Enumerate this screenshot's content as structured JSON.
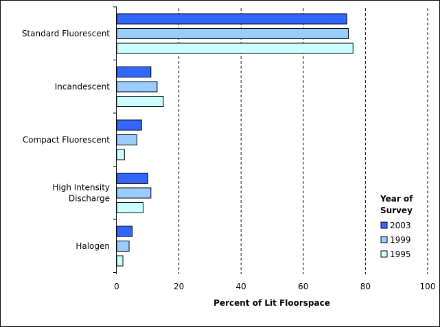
{
  "chart_data": {
    "type": "bar",
    "orientation": "horizontal",
    "categories": [
      "Standard Fluorescent",
      "Incandescent",
      "Compact Fluorescent",
      "High Intensity Discharge",
      "Halogen"
    ],
    "category_lines": [
      [
        "Standard Fluorescent"
      ],
      [
        "Incandescent"
      ],
      [
        "Compact Fluorescent"
      ],
      [
        "High Intensity",
        "Discharge"
      ],
      [
        "Halogen"
      ]
    ],
    "series": [
      {
        "name": "2003",
        "color": "#3366ff",
        "values": [
          74,
          11,
          8,
          10,
          5
        ]
      },
      {
        "name": "1999",
        "color": "#99ccff",
        "values": [
          74.5,
          13,
          6.5,
          11,
          4
        ]
      },
      {
        "name": "1995",
        "color": "#ccffff",
        "values": [
          76,
          15,
          2.5,
          8.5,
          2
        ]
      }
    ],
    "xlabel": "Percent of Lit Floorspace",
    "xlim": [
      0,
      100
    ],
    "xticks": [
      0,
      20,
      40,
      60,
      80,
      100
    ],
    "grid": "vertical-dashed",
    "legend": {
      "title_lines": [
        "Year of",
        "Survey"
      ],
      "placement": "right"
    }
  }
}
